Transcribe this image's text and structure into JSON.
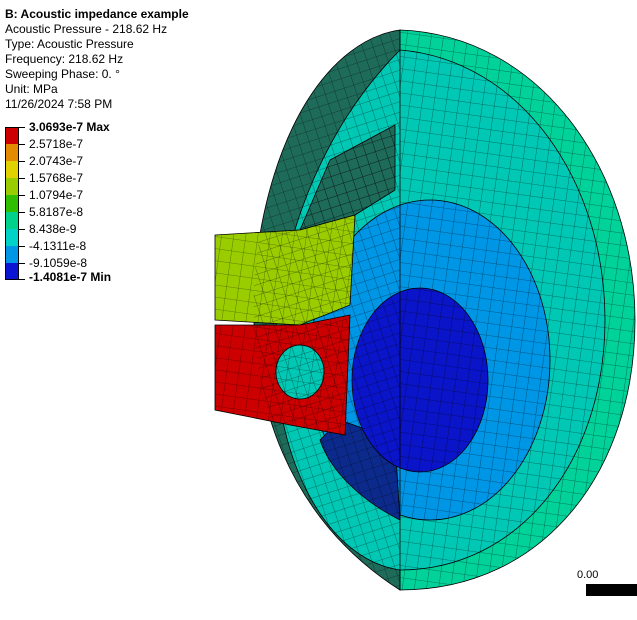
{
  "info": {
    "title": "B: Acoustic impedance example",
    "subtitle": "Acoustic Pressure - 218.62 Hz",
    "type_line": "Type: Acoustic Pressure",
    "frequency_line": "Frequency: 218.62 Hz",
    "phase_line": "Sweeping Phase: 0. °",
    "unit_line": "Unit: MPa",
    "date_line": "11/26/2024 7:58 PM"
  },
  "legend": {
    "bands": [
      {
        "label": "3.0693e-7 Max",
        "color": "#cc0000",
        "bold": true
      },
      {
        "label": "2.5718e-7",
        "color": "#e28a00",
        "bold": false
      },
      {
        "label": "2.0743e-7",
        "color": "#e0d200",
        "bold": false
      },
      {
        "label": "1.5768e-7",
        "color": "#9acd00",
        "bold": false
      },
      {
        "label": "1.0794e-7",
        "color": "#2fbf00",
        "bold": false
      },
      {
        "label": "5.8187e-8",
        "color": "#00d28c",
        "bold": false
      },
      {
        "label": "8.438e-9",
        "color": "#00d2c8",
        "bold": false
      },
      {
        "label": "-4.1311e-8",
        "color": "#0096e6",
        "bold": false
      }
    ],
    "last_band_color": "#0a14d2",
    "extra_label": "-9.1059e-8",
    "min_label": "-1.4081e-7 Min"
  },
  "scale": {
    "label": "0.00"
  },
  "colors": {
    "outer_dark": "#1e6b5a",
    "shell_teal": "#00c8b4",
    "ring_green": "#00d29a",
    "mid_blue": "#0096e6",
    "deep_blue": "#0a14c8",
    "navy_side": "#0b2a8c",
    "yellow_green": "#9acd00",
    "green": "#2fbf00",
    "red": "#cc0000",
    "orange": "#e28a00",
    "mesh": "#000000"
  }
}
